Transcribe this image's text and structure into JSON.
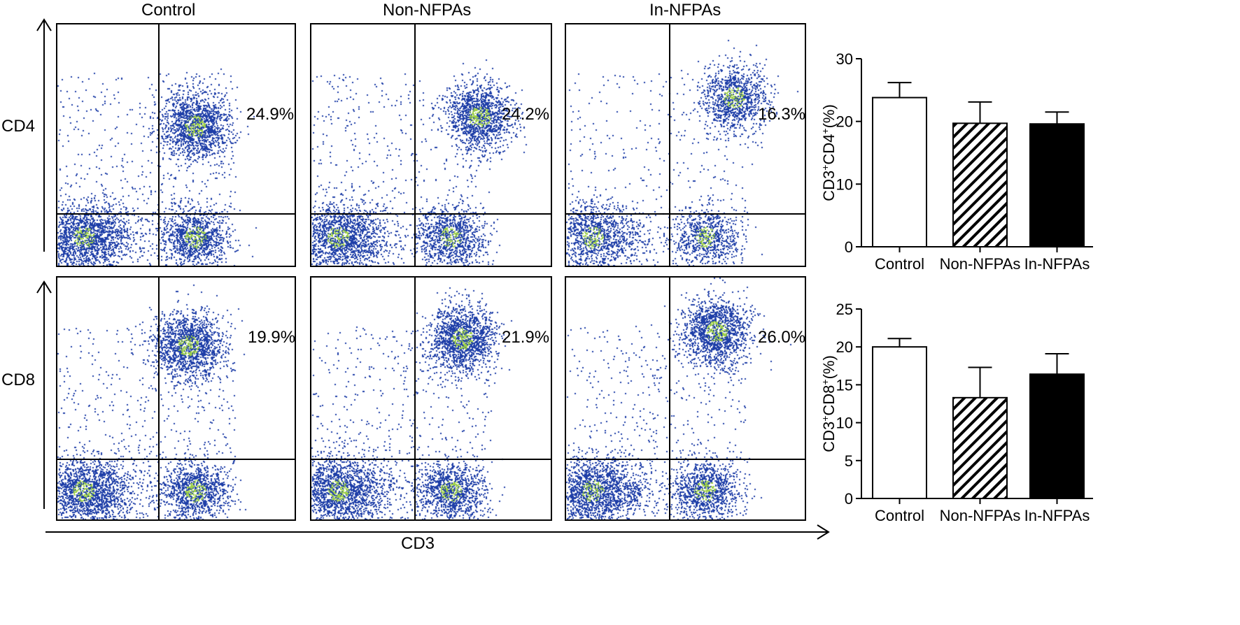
{
  "figure": {
    "column_titles": [
      "Control",
      "Non-NFPAs",
      "In-NFPAs"
    ],
    "row_labels": [
      "CD4",
      "CD8"
    ],
    "x_axis_label": "CD3"
  },
  "colors": {
    "dot": "#1f3fa8",
    "dot_dense": "#9fd04a",
    "axis": "#000000",
    "bar_control": "#ffffff",
    "bar_in_nfpas": "#000000"
  },
  "chart_data": [
    {
      "type": "scatter",
      "name": "flow-cytometry-cd4",
      "ylabel": "CD4",
      "xlabel": "CD3",
      "panels": [
        {
          "group": "Control",
          "quadrant_percent": "24.9%"
        },
        {
          "group": "Non-NFPAs",
          "quadrant_percent": "24.2%"
        },
        {
          "group": "In-NFPAs",
          "quadrant_percent": "16.3%"
        }
      ]
    },
    {
      "type": "scatter",
      "name": "flow-cytometry-cd8",
      "ylabel": "CD8",
      "xlabel": "CD3",
      "panels": [
        {
          "group": "Control",
          "quadrant_percent": "19.9%"
        },
        {
          "group": "Non-NFPAs",
          "quadrant_percent": "21.9%"
        },
        {
          "group": "In-NFPAs",
          "quadrant_percent": "26.0%"
        }
      ]
    },
    {
      "type": "bar",
      "categories": [
        "Control",
        "Non-NFPAs",
        "In-NFPAs"
      ],
      "values": [
        23.8,
        19.7,
        19.6
      ],
      "errors": [
        2.4,
        3.4,
        1.9
      ],
      "fills": [
        "open",
        "hatched",
        "solid"
      ],
      "ylabel_main": "CD3",
      "ylabel_mid": "CD4",
      "ylabel_tail": "(%)",
      "ylim": [
        0,
        30
      ],
      "yticks": [
        0,
        10,
        20,
        30
      ],
      "grid": false
    },
    {
      "type": "bar",
      "categories": [
        "Control",
        "Non-NFPAs",
        "In-NFPAs"
      ],
      "values": [
        20.0,
        13.3,
        16.4
      ],
      "errors": [
        1.1,
        4.0,
        2.7
      ],
      "fills": [
        "open",
        "hatched",
        "solid"
      ],
      "ylabel_main": "CD3",
      "ylabel_mid": "CD8",
      "ylabel_tail": "(%)",
      "ylim": [
        0,
        25
      ],
      "yticks": [
        0,
        5,
        10,
        15,
        20,
        25
      ],
      "grid": false
    }
  ]
}
